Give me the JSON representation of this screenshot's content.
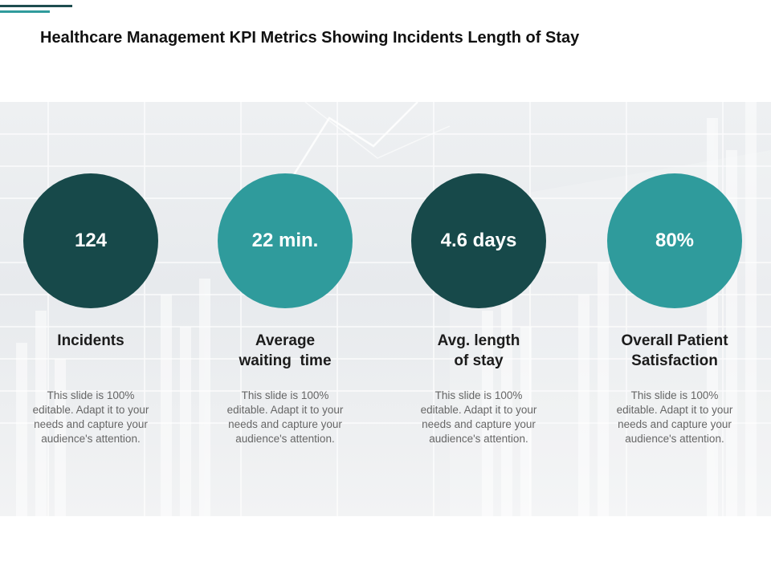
{
  "title": "Healthcare Management KPI Metrics Showing Incidents Length of Stay",
  "colors": {
    "dark": "#17494a",
    "teal": "#2f9b9c"
  },
  "kpis": [
    {
      "value": "124",
      "label": "Incidents",
      "description": "This slide is 100% editable. Adapt it to your needs and capture your audience's attention.",
      "color": "dark"
    },
    {
      "value": "22 min.",
      "label": "Average waiting  time",
      "description": "This slide is 100% editable. Adapt it to your needs and capture your audience's attention.",
      "color": "teal"
    },
    {
      "value": "4.6 days",
      "label": "Avg. length of stay",
      "description": "This slide is 100% editable. Adapt it to your needs and capture your audience's attention.",
      "color": "dark"
    },
    {
      "value": "80%",
      "label": "Overall Patient Satisfaction",
      "description": "This slide is 100% editable. Adapt it to your needs and capture your audience's attention.",
      "color": "teal"
    }
  ]
}
